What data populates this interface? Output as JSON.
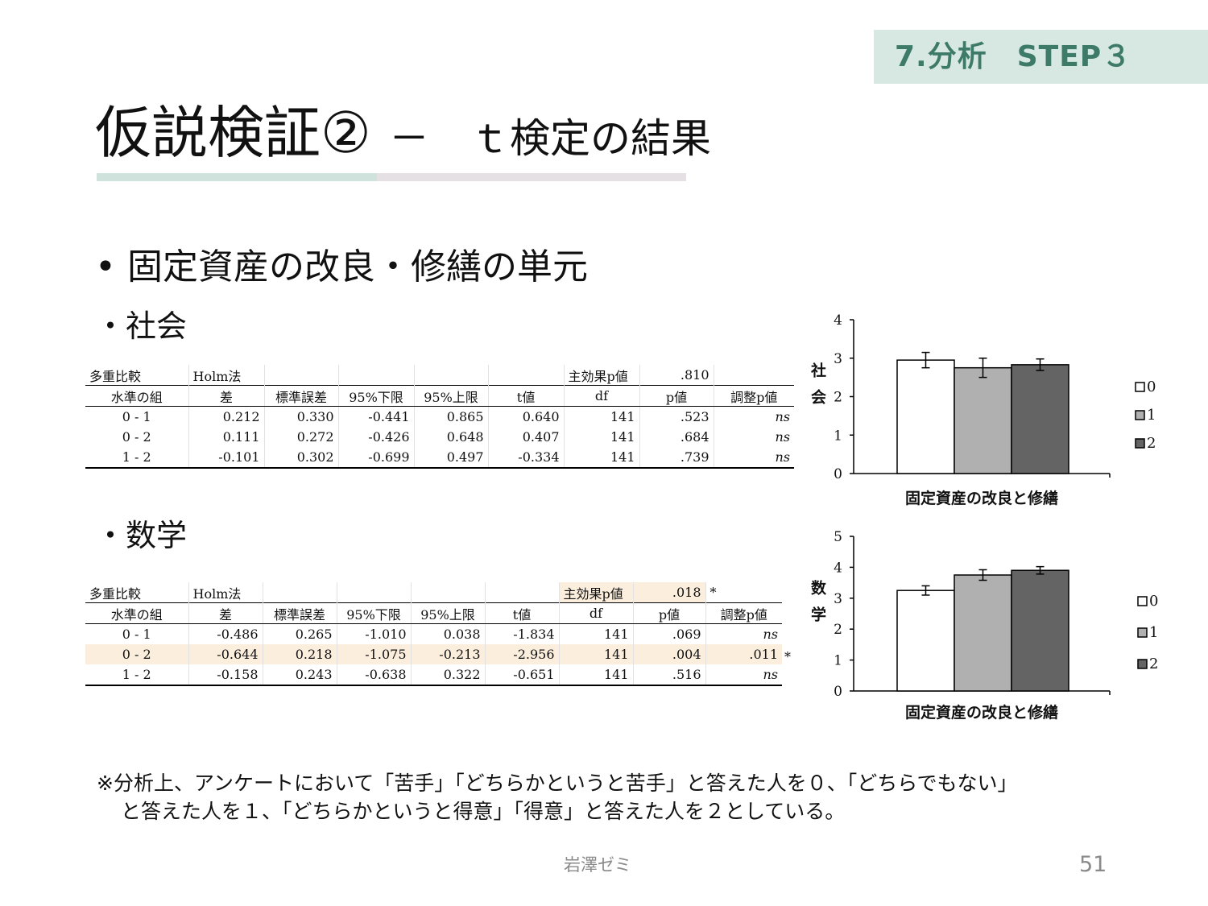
{
  "header": {
    "step_label": "7.分析　STEP３",
    "title_main": "仮説検証②",
    "title_sub": "－　ｔ検定の結果",
    "accent_color": "#3d7a68",
    "accent_bg": "#d6e8e1"
  },
  "bullet": "固定資産の改良・修繕の単元",
  "sections": [
    {
      "label": "・社会",
      "table": {
        "top_row": [
          "多重比較",
          "Holm法",
          "",
          "",
          "",
          "",
          "主効果p値",
          ".810",
          ""
        ],
        "headers": [
          "水準の組",
          "差",
          "標準誤差",
          "95%下限",
          "95%上限",
          "t値",
          "df",
          "p値",
          "調整p値"
        ],
        "rows": [
          [
            "0 - 1",
            "0.212",
            "0.330",
            "-0.441",
            "0.865",
            "0.640",
            "141",
            ".523",
            "ns"
          ],
          [
            "0 - 2",
            "0.111",
            "0.272",
            "-0.426",
            "0.648",
            "0.407",
            "141",
            ".684",
            "ns"
          ],
          [
            "1 - 2",
            "-0.101",
            "0.302",
            "-0.699",
            "0.497",
            "-0.334",
            "141",
            ".739",
            "ns"
          ]
        ]
      }
    },
    {
      "label": "・数学",
      "table": {
        "top_row": [
          "多重比較",
          "Holm法",
          "",
          "",
          "",
          "",
          "主効果p値",
          ".018",
          "*"
        ],
        "headers": [
          "水準の組",
          "差",
          "標準誤差",
          "95%下限",
          "95%上限",
          "t値",
          "df",
          "p値",
          "調整p値"
        ],
        "rows": [
          [
            "0 - 1",
            "-0.486",
            "0.265",
            "-1.010",
            "0.038",
            "-1.834",
            "141",
            ".069",
            "ns"
          ],
          [
            "0 - 2",
            "-0.644",
            "0.218",
            "-1.075",
            "-0.213",
            "-2.956",
            "141",
            ".004",
            ".011"
          ],
          [
            "1 - 2",
            "-0.158",
            "0.243",
            "-0.638",
            "0.322",
            "-0.651",
            "141",
            ".516",
            "ns"
          ]
        ],
        "row_star": "*"
      }
    }
  ],
  "chart_data": [
    {
      "type": "bar",
      "ylabel": "社会",
      "xlabel": "固定資産の改良と修繕",
      "ylim": [
        0,
        4
      ],
      "yticks": [
        "0",
        "1",
        "2",
        "3",
        "4"
      ],
      "series": [
        {
          "name": "0",
          "values": [
            2.95
          ],
          "error": 0.2,
          "color": "#ffffff"
        },
        {
          "name": "1",
          "values": [
            2.75
          ],
          "error": 0.25,
          "color": "#b0b0b0"
        },
        {
          "name": "2",
          "values": [
            2.83
          ],
          "error": 0.15,
          "color": "#646464"
        }
      ],
      "legend": "right"
    },
    {
      "type": "bar",
      "ylabel": "数学",
      "xlabel": "固定資産の改良と修繕",
      "ylim": [
        0,
        5
      ],
      "yticks": [
        "0",
        "1",
        "2",
        "3",
        "4",
        "5"
      ],
      "series": [
        {
          "name": "0",
          "values": [
            3.25
          ],
          "error": 0.15,
          "color": "#ffffff"
        },
        {
          "name": "1",
          "values": [
            3.75
          ],
          "error": 0.17,
          "color": "#b0b0b0"
        },
        {
          "name": "2",
          "values": [
            3.9
          ],
          "error": 0.12,
          "color": "#646464"
        }
      ],
      "legend": "right"
    }
  ],
  "footnote": {
    "line1": "※分析上、アンケートにおいて「苦手」「どちらかというと苦手」と答えた人を０、「どちらでもない」",
    "line2": "と答えた人を１、「どちらかというと得意」「得意」と答えた人を２としている。"
  },
  "footer": {
    "name": "岩澤ゼミ",
    "page": "51"
  }
}
